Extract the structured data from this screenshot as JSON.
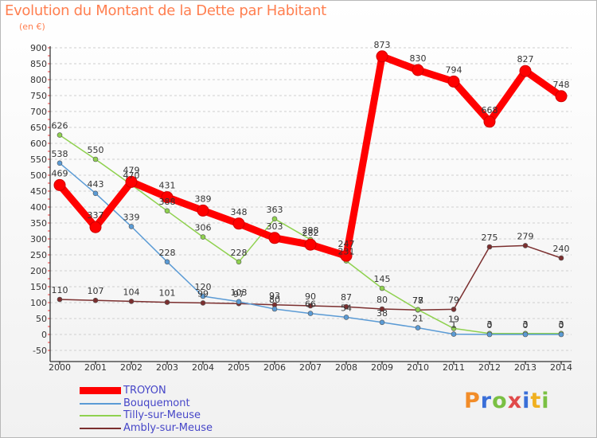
{
  "title": "Evolution du Montant de la Dette par Habitant",
  "subtitle": "(en €)",
  "logo": {
    "text": "Proxiti",
    "colors": [
      "#f28c28",
      "#3a6fd8",
      "#7ac043",
      "#e04a4a",
      "#3a6fd8",
      "#f0b020",
      "#7ac043"
    ]
  },
  "chart_data": {
    "type": "line",
    "title": "Evolution du Montant de la Dette par Habitant",
    "subtitle": "(en €)",
    "x": [
      "2000",
      "2001",
      "2002",
      "2003",
      "2004",
      "2005",
      "2006",
      "2007",
      "2008",
      "2009",
      "2010",
      "2011",
      "2012",
      "2013",
      "2014"
    ],
    "ylim": [
      -50,
      900
    ],
    "yticks": [
      -50,
      0,
      50,
      100,
      150,
      200,
      250,
      300,
      350,
      400,
      450,
      500,
      550,
      600,
      650,
      700,
      750,
      800,
      850,
      900
    ],
    "grid": "horizontal dashed",
    "legend_position": "bottom-left",
    "series": [
      {
        "name": "TROYON",
        "color": "#ff0000",
        "width": 9,
        "values": [
          469,
          337,
          479,
          431,
          389,
          348,
          303,
          282,
          247,
          873,
          830,
          794,
          668,
          827,
          748
        ],
        "labels": [
          "469",
          "337",
          "479",
          "431",
          "389",
          "348",
          "303",
          "282",
          "247",
          "873",
          "830",
          "794",
          "668",
          "827",
          "748"
        ]
      },
      {
        "name": "Bouquemont",
        "color": "#5b9bd5",
        "width": 1.5,
        "values": [
          538,
          443,
          339,
          228,
          120,
          103,
          80,
          66,
          54,
          38,
          21,
          1,
          0,
          0,
          0
        ],
        "labels": [
          "538",
          "443",
          "339",
          "228",
          "120",
          "103",
          "80",
          "66",
          "54",
          "38",
          "21",
          "1",
          "0",
          "0",
          "0"
        ]
      },
      {
        "name": "Tilly-sur-Meuse",
        "color": "#8fd14f",
        "width": 1.5,
        "values": [
          626,
          550,
          470,
          388,
          306,
          228,
          363,
          298,
          231,
          145,
          78,
          19,
          3,
          3,
          3
        ],
        "labels": [
          "626",
          "550",
          "470",
          "388",
          "306",
          "228",
          "363",
          "298",
          "231",
          "145",
          "78",
          "19",
          "3",
          "3",
          "3"
        ]
      },
      {
        "name": "Ambly-sur-Meuse",
        "color": "#7b2f2f",
        "width": 1.5,
        "values": [
          110,
          107,
          104,
          101,
          99,
          97,
          93,
          90,
          87,
          80,
          77,
          79,
          275,
          279,
          240
        ],
        "labels": [
          "110",
          "107",
          "104",
          "101",
          "99",
          "97",
          "93",
          "90",
          "87",
          "80",
          "77",
          "79",
          "275",
          "279",
          "240"
        ]
      }
    ]
  }
}
